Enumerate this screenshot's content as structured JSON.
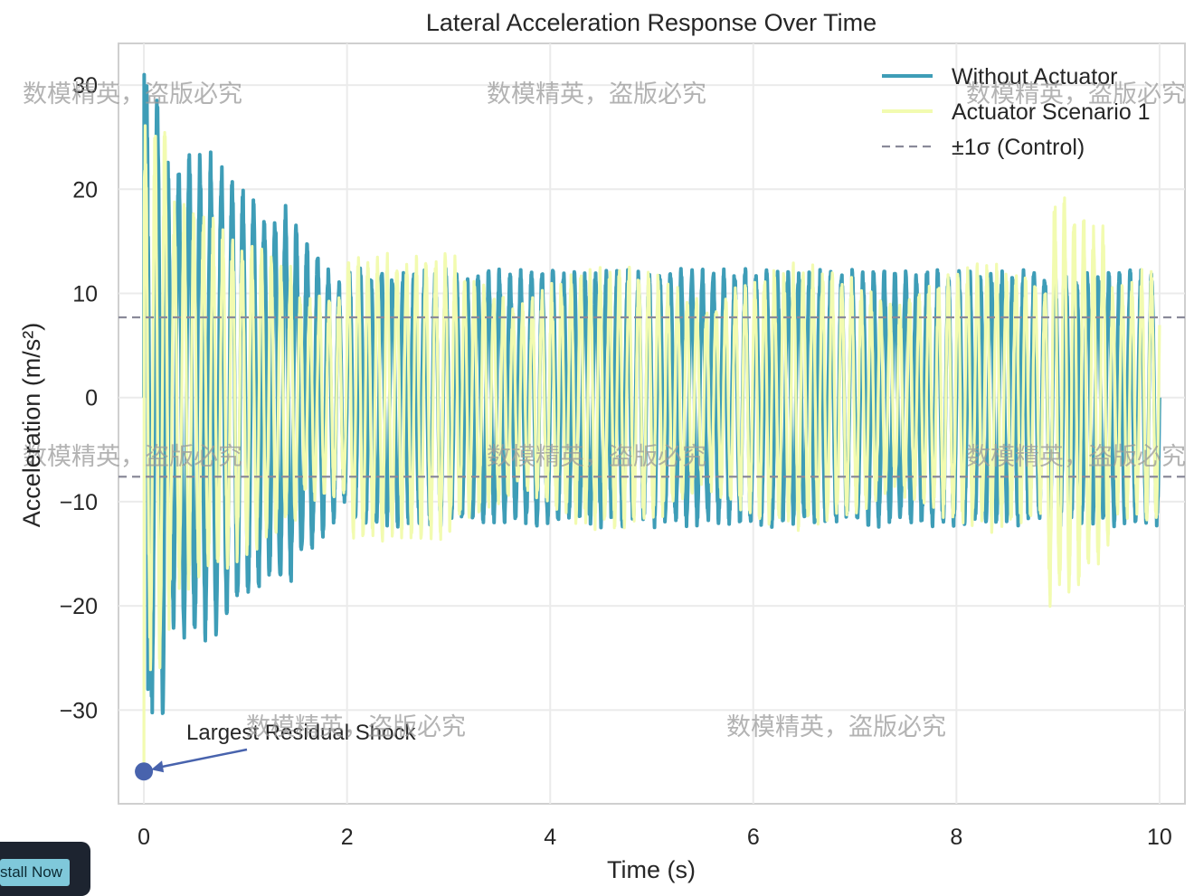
{
  "chart_data": {
    "type": "line",
    "title": "Lateral Acceleration Response Over Time",
    "xlabel": "Time (s)",
    "ylabel": "Acceleration (m/s²)",
    "xlim": [
      -0.25,
      10.25
    ],
    "ylim": [
      -39,
      34
    ],
    "xticks": [
      0,
      2,
      4,
      6,
      8,
      10
    ],
    "yticks": [
      -30,
      -20,
      -10,
      0,
      10,
      20,
      30
    ],
    "grid": true,
    "legend_position": "top-right",
    "series": [
      {
        "name": "Without Actuator",
        "color": "#3e9db7",
        "description_params": {
          "frequency_hz": 9.5,
          "initial_peak": 31,
          "steady_amplitude": 12.5
        }
      },
      {
        "name": "Actuator Scenario 1",
        "color": "#f2fbb0",
        "description_params": {
          "frequency_hz": 10.5,
          "initial_peak": 27,
          "steady_amplitude": 9,
          "burst_time_s": 9.0,
          "burst_peak": 21
        }
      }
    ],
    "reference_lines": [
      {
        "name": "±1σ (Control)",
        "values": [
          7.7,
          -7.6
        ],
        "style": "dashed",
        "color": "#8a8a99"
      }
    ],
    "annotations": [
      {
        "text": "Largest Residual Shock",
        "point": {
          "x": 0.0,
          "y": -35.9
        },
        "marker_color": "#4863ad"
      }
    ],
    "watermark": "数模精英，盗版必究"
  },
  "toast": {
    "button_label": "stall Now"
  }
}
